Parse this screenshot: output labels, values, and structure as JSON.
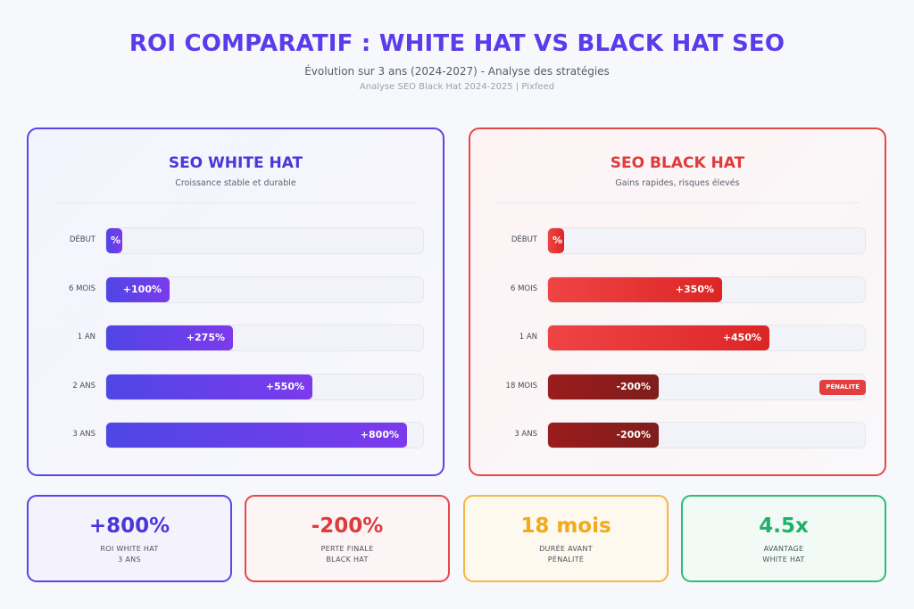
{
  "header": {
    "title": "ROI COMPARATIF : WHITE HAT VS BLACK HAT SEO",
    "subtitle": "Évolution sur 3 ans (2024-2027) - Analyse des stratégies",
    "source": "Analyse SEO Black Hat 2024-2025 | Pixfeed"
  },
  "panels": {
    "white": {
      "title": "SEO WHITE HAT",
      "subtitle": "Croissance stable et durable"
    },
    "black": {
      "title": "SEO BLACK HAT",
      "subtitle": "Gains rapides, risques élevés",
      "penalty_badge": "PÉNALITÉ"
    }
  },
  "chart_data": [
    {
      "type": "bar",
      "orientation": "horizontal",
      "title": "SEO WHITE HAT",
      "categories": [
        "DÉBUT",
        "6 MOIS",
        "1 AN",
        "2 ANS",
        "3 ANS"
      ],
      "values": [
        0,
        100,
        275,
        550,
        800
      ],
      "labels": [
        "%",
        "+100%",
        "+275%",
        "+550%",
        "+800%"
      ],
      "fill_percent": [
        5,
        20,
        40,
        65,
        95
      ]
    },
    {
      "type": "bar",
      "orientation": "horizontal",
      "title": "SEO BLACK HAT",
      "categories": [
        "DÉBUT",
        "6 MOIS",
        "1 AN",
        "18 MOIS",
        "3 ANS"
      ],
      "values": [
        0,
        350,
        450,
        -200,
        -200
      ],
      "labels": [
        "%",
        "+350%",
        "+450%",
        "-200%",
        "-200%"
      ],
      "fill_percent": [
        5,
        55,
        70,
        35,
        35
      ],
      "penalty": [
        false,
        false,
        false,
        true,
        true
      ]
    }
  ],
  "cards": [
    {
      "value": "+800%",
      "label_line1": "ROI WHITE HAT",
      "label_line2": "3 ANS"
    },
    {
      "value": "-200%",
      "label_line1": "PERTE FINALE",
      "label_line2": "BLACK HAT"
    },
    {
      "value": "18 mois",
      "label_line1": "DURÉE AVANT",
      "label_line2": "PÉNALITÉ"
    },
    {
      "value": "4.5x",
      "label_line1": "AVANTAGE",
      "label_line2": "WHITE HAT"
    }
  ]
}
